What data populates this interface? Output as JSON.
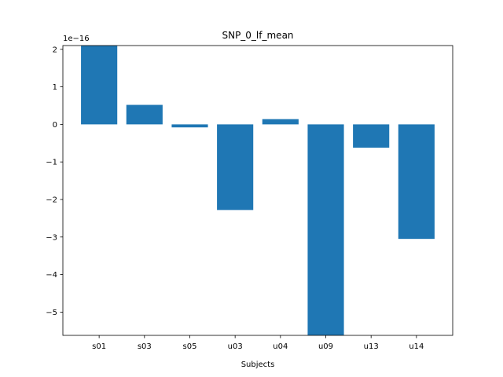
{
  "chart_data": {
    "type": "bar",
    "title": "SNP_0_lf_mean",
    "xlabel": "Subjects",
    "ylabel": "",
    "offset_text": "1e−16",
    "scale_exponent": -16,
    "categories": [
      "s01",
      "s03",
      "s05",
      "u03",
      "u04",
      "u09",
      "u13",
      "u14"
    ],
    "values": [
      2.1,
      0.52,
      -0.08,
      -2.28,
      0.14,
      -5.62,
      -0.62,
      -3.05
    ],
    "ylim": [
      -5.62,
      2.1
    ],
    "yticks": [
      -5,
      -4,
      -3,
      -2,
      -1,
      0,
      1,
      2
    ],
    "ytick_labels": [
      "−5",
      "−4",
      "−3",
      "−2",
      "−1",
      "0",
      "1",
      "2"
    ],
    "grid": false,
    "legend": "none",
    "bar_color": "#1f77b4"
  }
}
